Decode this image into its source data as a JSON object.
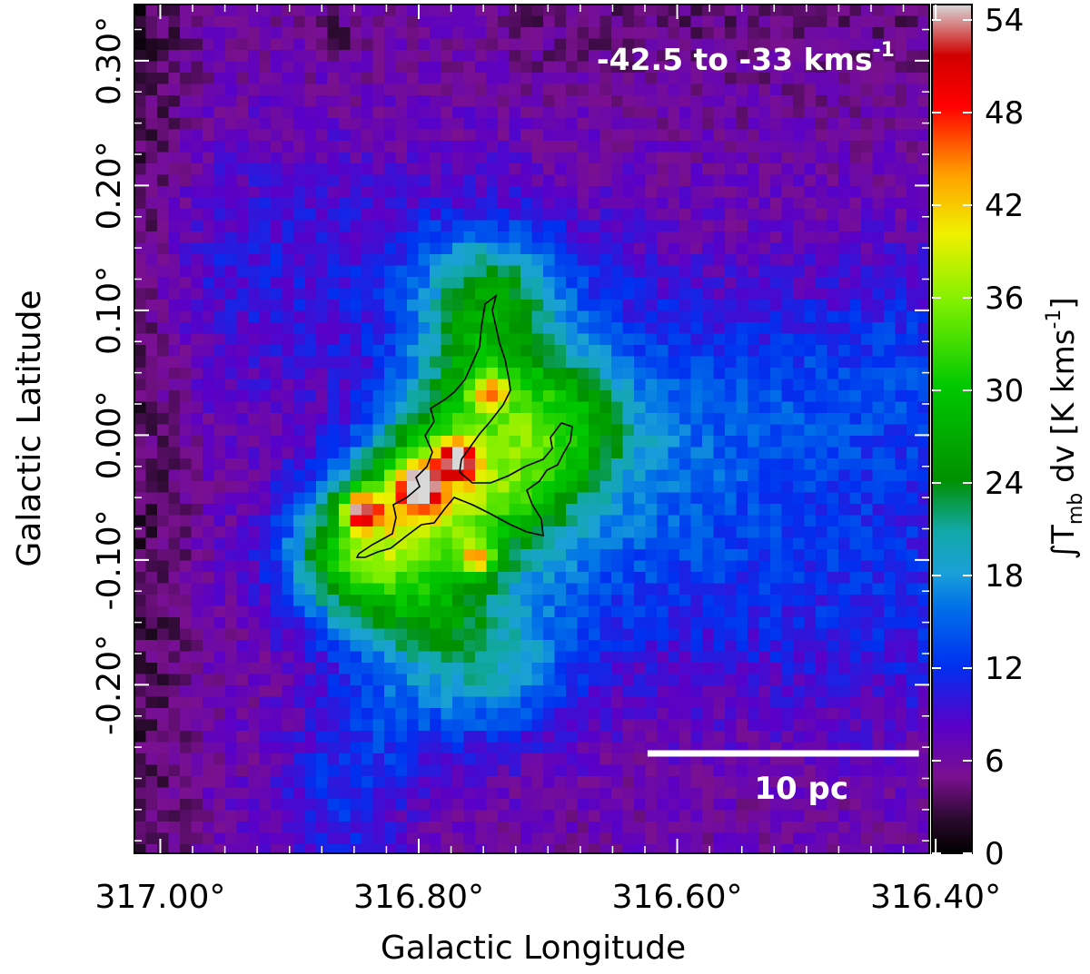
{
  "chart_data": {
    "type": "heatmap",
    "xlabel": "Galactic Longitude",
    "ylabel": "Galactic Latitude",
    "x_ticks": [
      {
        "value": 317.0,
        "label": "317.00°"
      },
      {
        "value": 316.8,
        "label": "316.80°"
      },
      {
        "value": 316.6,
        "label": "316.60°"
      },
      {
        "value": 316.4,
        "label": "316.40°"
      }
    ],
    "y_ticks": [
      {
        "value": 0.3,
        "label": "0.30°"
      },
      {
        "value": 0.2,
        "label": "0.20°"
      },
      {
        "value": 0.1,
        "label": "0.10°"
      },
      {
        "value": 0.0,
        "label": "0.00°"
      },
      {
        "value": -0.1,
        "label": "-0.10°"
      },
      {
        "value": -0.2,
        "label": "-0.20°"
      }
    ],
    "xlim": [
      317.02,
      316.405
    ],
    "ylim": [
      -0.335,
      0.345
    ],
    "velocity_range_label": {
      "text": "-42.5 to -33  kms",
      "sup": "-1"
    },
    "scale_bar": {
      "label": "10 pc",
      "l_from": 316.623,
      "l_to": 316.413,
      "b": -0.255
    },
    "colorbar": {
      "label": "∫T",
      "label_sub": "mb",
      "label_rest": " dv [K kms",
      "label_sup": "-1",
      "label_end": "]",
      "ticks": [
        0,
        6,
        12,
        18,
        24,
        30,
        36,
        42,
        48,
        54
      ],
      "range": [
        0,
        55
      ]
    },
    "emission_peaks": [
      {
        "l": 316.865,
        "b": 0.317,
        "value": 15
      },
      {
        "l": 316.845,
        "b": -0.06,
        "value": 46
      },
      {
        "l": 316.8,
        "b": -0.04,
        "value": 50
      },
      {
        "l": 316.77,
        "b": -0.02,
        "value": 44
      },
      {
        "l": 316.745,
        "b": 0.035,
        "value": 36
      },
      {
        "l": 316.755,
        "b": -0.1,
        "value": 40
      },
      {
        "l": 316.66,
        "b": 0.02,
        "value": 20
      },
      {
        "l": 316.83,
        "b": -0.3,
        "value": 16
      }
    ]
  }
}
